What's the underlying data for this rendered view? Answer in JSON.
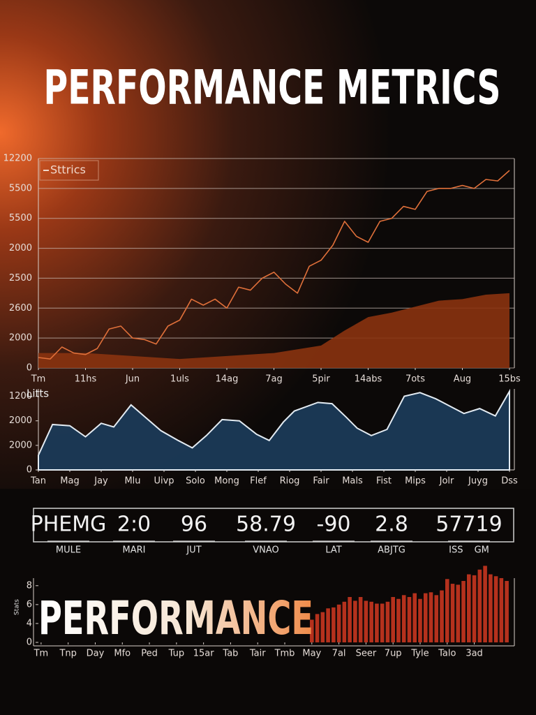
{
  "title": "PERFORMANCE METRICS",
  "chart_data": [
    {
      "type": "line",
      "legend": "top-left",
      "grid": true,
      "xlim": [
        0,
        10
      ],
      "ylim": [
        0,
        7000
      ],
      "xticks": [
        {
          "value": 0,
          "label": "Tm"
        },
        {
          "value": 1,
          "label": "11hs"
        },
        {
          "value": 2,
          "label": "Jun"
        },
        {
          "value": 3,
          "label": "1uls"
        },
        {
          "value": 4,
          "label": "14ag"
        },
        {
          "value": 5,
          "label": "7ag"
        },
        {
          "value": 6,
          "label": "5pir"
        },
        {
          "value": 7,
          "label": "14abs"
        },
        {
          "value": 8,
          "label": "7ots"
        },
        {
          "value": 9,
          "label": "Aug"
        },
        {
          "value": 10,
          "label": "15bs"
        }
      ],
      "yticks": [
        0,
        {
          "value": 1000,
          "label": "2000"
        },
        {
          "value": 2000,
          "label": "2600"
        },
        {
          "value": 3000,
          "label": "2500"
        },
        {
          "value": 4000,
          "label": "2000"
        },
        {
          "value": 5000,
          "label": "5500"
        },
        {
          "value": 6000,
          "label": "5500"
        },
        {
          "value": 7000,
          "label": "12200"
        }
      ],
      "series": [
        {
          "type": "area",
          "color": "#8a3310",
          "x": [
            0,
            1,
            2,
            3,
            4,
            5,
            6,
            6.5,
            7,
            7.5,
            8.5,
            9,
            9.5,
            10
          ],
          "values": [
            500,
            500,
            400,
            300,
            400,
            500,
            750,
            1250,
            1700,
            1850,
            2250,
            2300,
            2450,
            2500
          ]
        },
        {
          "name": "Sttrics",
          "type": "line",
          "color": "#e0703a",
          "x": [
            0,
            0.25,
            0.5,
            0.75,
            1,
            1.25,
            1.5,
            1.75,
            2,
            2.25,
            2.5,
            2.75,
            3,
            3.25,
            3.5,
            3.75,
            4,
            4.25,
            4.5,
            4.75,
            5,
            5.25,
            5.5,
            5.75,
            6,
            6.25,
            6.5,
            6.75,
            7,
            7.25,
            7.5,
            7.75,
            8,
            8.25,
            8.5,
            8.75,
            9,
            9.25,
            9.5,
            9.75,
            10
          ],
          "values": [
            350,
            300,
            700,
            500,
            450,
            650,
            1300,
            1400,
            1000,
            950,
            800,
            1400,
            1600,
            2300,
            2100,
            2300,
            2000,
            2700,
            2600,
            3000,
            3200,
            2800,
            2500,
            3400,
            3600,
            4100,
            4900,
            4400,
            4200,
            4900,
            5000,
            5400,
            5300,
            5900,
            6000,
            6000,
            6100,
            6000,
            6300,
            6250,
            6600
          ]
        }
      ]
    },
    {
      "type": "area",
      "title": "Litts",
      "grid": false,
      "xlim": [
        0,
        15
      ],
      "ylim": [
        0,
        3.3
      ],
      "xticks": [
        {
          "value": 0,
          "label": "Tan"
        },
        {
          "value": 1,
          "label": "Mag"
        },
        {
          "value": 2,
          "label": "Jay"
        },
        {
          "value": 3,
          "label": "Mlu"
        },
        {
          "value": 4,
          "label": "Uivp"
        },
        {
          "value": 5,
          "label": "Solo"
        },
        {
          "value": 6,
          "label": "Mong"
        },
        {
          "value": 7,
          "label": "Flef"
        },
        {
          "value": 8,
          "label": "Riog"
        },
        {
          "value": 9,
          "label": "Fair"
        },
        {
          "value": 10,
          "label": "Mals"
        },
        {
          "value": 11,
          "label": "Fist"
        },
        {
          "value": 12,
          "label": "Mips"
        },
        {
          "value": 13,
          "label": "Jolr"
        },
        {
          "value": 14,
          "label": "Juyg"
        },
        {
          "value": 15,
          "label": "Dss"
        }
      ],
      "yticks": [
        0,
        {
          "value": 1,
          "label": "2000"
        },
        {
          "value": 2,
          "label": "2000"
        },
        {
          "value": 3,
          "label": "1200"
        }
      ],
      "series": [
        {
          "type": "area",
          "color": "#1b3a57",
          "x": [
            0,
            0.45,
            1,
            1.5,
            2,
            2.4,
            2.95,
            3.4,
            3.9,
            4.45,
            4.9,
            5.35,
            5.85,
            6.4,
            6.95,
            7.35,
            7.8,
            8.15,
            8.9,
            9.35,
            9.8,
            10.15,
            10.6,
            11.1,
            11.65,
            12.15,
            12.65,
            13.1,
            13.55,
            14.05,
            14.55,
            15
          ],
          "values": [
            0.6,
            1.85,
            1.8,
            1.35,
            1.9,
            1.75,
            2.65,
            2.15,
            1.6,
            1.2,
            0.9,
            1.4,
            2.05,
            2.0,
            1.45,
            1.2,
            1.95,
            2.4,
            2.75,
            2.7,
            2.15,
            1.7,
            1.4,
            1.65,
            3.0,
            3.15,
            2.9,
            2.6,
            2.3,
            2.5,
            2.2,
            3.2
          ]
        }
      ]
    },
    {
      "type": "bar",
      "ylabel": "Stats",
      "annotation": "PERFORMANCE",
      "grid": false,
      "xlim": [
        -0.1,
        17.3
      ],
      "ylim": [
        0,
        4.1
      ],
      "xticks": [
        {
          "value": 0,
          "label": "Tm"
        },
        {
          "value": 1,
          "label": "Tnp"
        },
        {
          "value": 2,
          "label": "Day"
        },
        {
          "value": 3,
          "label": "Mfo"
        },
        {
          "value": 4,
          "label": "Ped"
        },
        {
          "value": 5,
          "label": "Tup"
        },
        {
          "value": 6,
          "label": "15ar"
        },
        {
          "value": 7,
          "label": "Tab"
        },
        {
          "value": 8,
          "label": "Tair"
        },
        {
          "value": 9,
          "label": "Tmb"
        },
        {
          "value": 10,
          "label": "May"
        },
        {
          "value": 11,
          "label": "7al"
        },
        {
          "value": 12,
          "label": "Seer"
        },
        {
          "value": 13,
          "label": "7up"
        },
        {
          "value": 14,
          "label": "Tyle"
        },
        {
          "value": 15,
          "label": "Talo"
        },
        {
          "value": 16,
          "label": "3ad"
        }
      ],
      "yticks": [
        0,
        {
          "value": 1,
          "label": "4"
        },
        {
          "value": 2,
          "label": "6"
        },
        {
          "value": 3,
          "label": "8"
        }
      ],
      "series": [
        {
          "type": "bar",
          "color": "#b5311d",
          "x": [
            10,
            10.2,
            10.4,
            10.6,
            10.8,
            11,
            11.2,
            11.4,
            11.6,
            11.8,
            12,
            12.2,
            12.4,
            12.6,
            12.8,
            13,
            13.2,
            13.4,
            13.6,
            13.8,
            14,
            14.2,
            14.4,
            14.6,
            14.8,
            15,
            15.2,
            15.4,
            15.6,
            15.8,
            16,
            16.2,
            16.4,
            16.6,
            16.8,
            17,
            17.2
          ],
          "values": [
            1.2,
            1.5,
            1.6,
            1.8,
            1.85,
            2.0,
            2.15,
            2.4,
            2.2,
            2.4,
            2.2,
            2.15,
            2.05,
            2.05,
            2.15,
            2.4,
            2.3,
            2.5,
            2.4,
            2.6,
            2.3,
            2.6,
            2.65,
            2.5,
            2.75,
            3.35,
            3.1,
            3.05,
            3.25,
            3.6,
            3.55,
            3.85,
            4.05,
            3.6,
            3.5,
            3.4,
            3.25
          ]
        }
      ]
    }
  ],
  "stats": [
    {
      "value": "PHEMG",
      "label": "MULE"
    },
    {
      "value": "2:0",
      "label": "MARI"
    },
    {
      "value": "96",
      "label": "JUT"
    },
    {
      "value": "58.79",
      "label": "VNAO"
    },
    {
      "value": "-90",
      "label": "LAT"
    },
    {
      "value": "2.8",
      "label": "ABJTG"
    },
    {
      "value": "57719",
      "label": "ISS GM"
    }
  ]
}
